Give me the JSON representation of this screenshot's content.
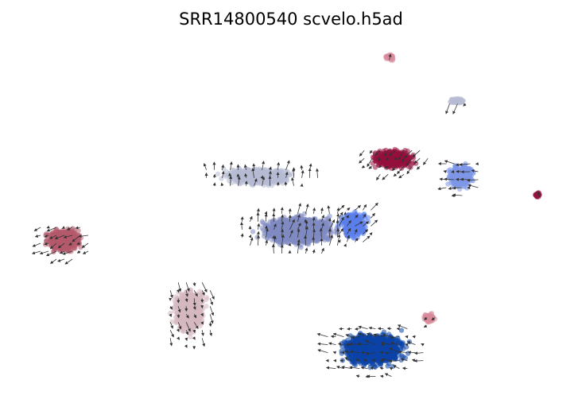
{
  "chart_data": {
    "type": "scatter",
    "title": "SRR14800540 scvelo.h5ad",
    "xlabel": "",
    "ylabel": "",
    "axes_visible": false,
    "grid": false,
    "legend": "none",
    "overlay": "velocity-arrows",
    "clusters": [
      {
        "color": "#b45a6c",
        "center": [
          80,
          302
        ],
        "spread": [
          30,
          20
        ],
        "arrows": true
      },
      {
        "color": "#d6b8bf",
        "center": [
          238,
          392
        ],
        "spread": [
          26,
          36
        ],
        "arrows": true
      },
      {
        "color": "#b7bbd3",
        "center": [
          325,
          222
        ],
        "spread": [
          58,
          14
        ],
        "arrows": true
      },
      {
        "color": "#7f8ac2",
        "center": [
          375,
          290
        ],
        "spread": [
          62,
          24
        ],
        "arrows": true
      },
      {
        "color": "#5b80ec",
        "center": [
          445,
          283
        ],
        "spread": [
          22,
          22
        ],
        "arrows": true
      },
      {
        "color": "#0b44a8",
        "center": [
          470,
          440
        ],
        "spread": [
          52,
          28
        ],
        "arrows": true
      },
      {
        "color": "#95103e",
        "center": [
          495,
          200
        ],
        "spread": [
          36,
          16
        ],
        "arrows": true
      },
      {
        "color": "#7d98e8",
        "center": [
          580,
          222
        ],
        "spread": [
          22,
          20
        ],
        "arrows": true
      },
      {
        "color": "#b7bbd3",
        "center": [
          575,
          127
        ],
        "spread": [
          15,
          5
        ],
        "arrows": true
      },
      {
        "color": "#d98a9a",
        "center": [
          490,
          72
        ],
        "spread": [
          8,
          5
        ],
        "arrows": true
      },
      {
        "color": "#95103e",
        "center": [
          676,
          245
        ],
        "spread": [
          5,
          5
        ],
        "arrows": true
      },
      {
        "color": "#d98a9a",
        "center": [
          540,
          400
        ],
        "spread": [
          10,
          8
        ],
        "arrows": true
      }
    ]
  }
}
